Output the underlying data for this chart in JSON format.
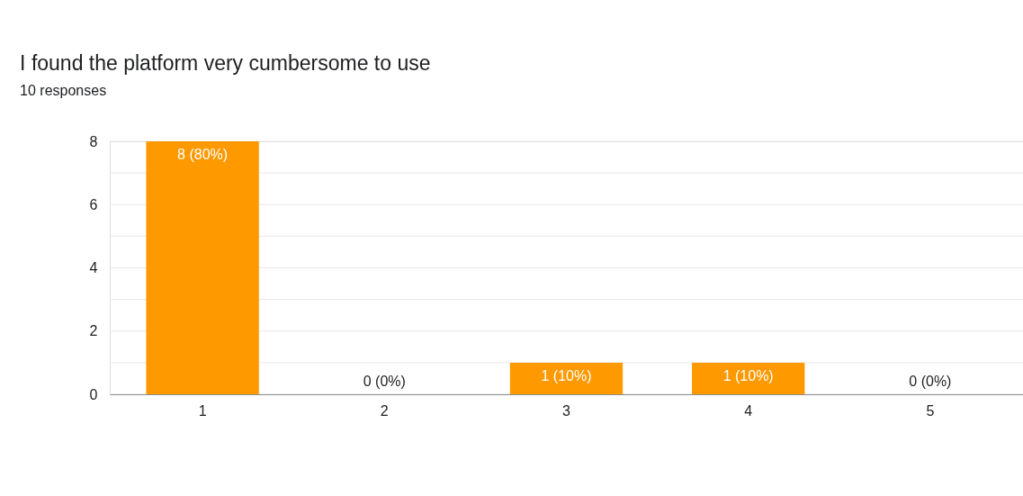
{
  "chart_data": {
    "type": "bar",
    "title": "I found the platform very cumbersome to use",
    "subtitle": "10 responses",
    "categories": [
      "1",
      "2",
      "3",
      "4",
      "5"
    ],
    "values": [
      8,
      0,
      1,
      1,
      0
    ],
    "color": "#ff9900",
    "value_labels": [
      "8 (80%)",
      "0 (0%)",
      "1 (10%)",
      "1 (10%)",
      "0 (0%)"
    ],
    "ylim": [
      0,
      8
    ],
    "yticks": [
      0,
      {
        "value": 1,
        "label": null
      },
      2,
      {
        "value": 3,
        "label": null
      },
      4,
      {
        "value": 5,
        "label": null
      },
      6,
      {
        "value": 7,
        "label": null
      },
      8
    ],
    "grid": "y"
  }
}
